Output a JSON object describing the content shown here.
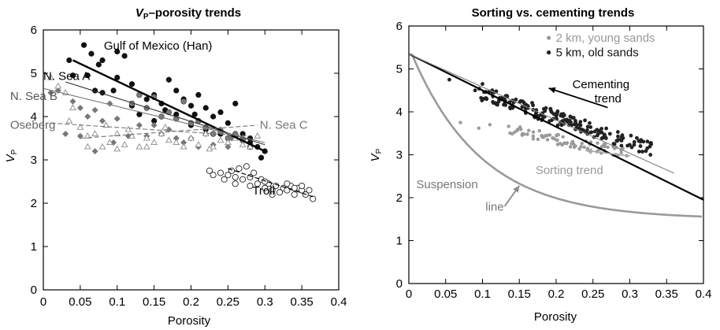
{
  "chart_data": [
    {
      "type": "scatter",
      "title_main": "V",
      "title_sub": "P",
      "title_rest": "–porosity trends",
      "xlabel": "Porosity",
      "ylabel_main": "V",
      "ylabel_sub": "P",
      "xlim": [
        0,
        0.4
      ],
      "ylim": [
        0,
        6
      ],
      "xticks": [
        "0",
        "0.05",
        "0.1",
        "0.15",
        "0.2",
        "0.25",
        "0.3",
        "0.35",
        "0.4"
      ],
      "yticks": [
        "0",
        "1",
        "2",
        "3",
        "4",
        "5",
        "6"
      ],
      "annotations": [
        {
          "text": "Gulf of Mexico (Han)",
          "x": 0.082,
          "y": 5.55,
          "color": "#000000"
        },
        {
          "text": "N. Sea   A",
          "x": 0.0,
          "y": 4.85,
          "color": "#000000"
        },
        {
          "text": "N. Sea   B",
          "x": -0.045,
          "y": 4.38,
          "color": "#555555"
        },
        {
          "text": "Oseberg",
          "x": -0.045,
          "y": 3.72,
          "color": "#666666"
        },
        {
          "text": "N. Sea   C",
          "x": 0.293,
          "y": 3.72,
          "color": "#777777"
        },
        {
          "text": "Troll",
          "x": 0.283,
          "y": 2.2,
          "color": "#000000"
        }
      ],
      "series": [
        {
          "name": "Gulf of Mexico (Han)",
          "marker": "filled-circle",
          "color": "#111111",
          "points": [
            [
              0.055,
              5.65
            ],
            [
              0.065,
              5.45
            ],
            [
              0.08,
              5.3
            ],
            [
              0.1,
              5.5
            ],
            [
              0.11,
              5.4
            ],
            [
              0.035,
              5.3
            ],
            [
              0.075,
              5.2
            ],
            [
              0.06,
              4.95
            ],
            [
              0.07,
              4.6
            ],
            [
              0.08,
              4.55
            ],
            [
              0.1,
              4.9
            ],
            [
              0.12,
              4.75
            ],
            [
              0.14,
              4.4
            ],
            [
              0.15,
              4.5
            ],
            [
              0.16,
              4.3
            ],
            [
              0.17,
              4.85
            ],
            [
              0.18,
              4.6
            ],
            [
              0.19,
              4.4
            ],
            [
              0.2,
              4.25
            ],
            [
              0.21,
              4.5
            ],
            [
              0.22,
              4.2
            ],
            [
              0.23,
              4.0
            ],
            [
              0.24,
              4.1
            ],
            [
              0.25,
              3.85
            ],
            [
              0.26,
              4.3
            ],
            [
              0.27,
              3.6
            ],
            [
              0.28,
              3.5
            ],
            [
              0.29,
              3.3
            ],
            [
              0.295,
              3.05
            ],
            [
              0.3,
              3.2
            ],
            [
              0.12,
              4.25
            ],
            [
              0.13,
              4.05
            ],
            [
              0.15,
              3.9
            ],
            [
              0.18,
              4.05
            ],
            [
              0.2,
              3.8
            ],
            [
              0.22,
              3.7
            ],
            [
              0.24,
              3.6
            ],
            [
              0.26,
              3.55
            ],
            [
              0.28,
              3.4
            ],
            [
              0.205,
              4.05
            ],
            [
              0.165,
              4.15
            ],
            [
              0.04,
              4.95
            ],
            [
              0.095,
              4.6
            ]
          ]
        },
        {
          "name": "N. Sea A",
          "marker": "gray-circle",
          "color": "#7a7a7a",
          "points": [
            [
              0.12,
              4.3
            ],
            [
              0.14,
              4.2
            ],
            [
              0.16,
              4.0
            ],
            [
              0.17,
              4.1
            ],
            [
              0.18,
              3.95
            ],
            [
              0.2,
              3.85
            ],
            [
              0.21,
              3.9
            ],
            [
              0.22,
              3.75
            ],
            [
              0.23,
              3.6
            ],
            [
              0.24,
              3.65
            ],
            [
              0.25,
              3.5
            ],
            [
              0.26,
              3.6
            ],
            [
              0.27,
              3.45
            ],
            [
              0.28,
              3.3
            ],
            [
              0.19,
              4.35
            ],
            [
              0.15,
              4.45
            ],
            [
              0.13,
              4.5
            ]
          ]
        },
        {
          "name": "N. Sea B",
          "marker": "gray-diamond",
          "color": "#777777",
          "points": [
            [
              0.01,
              4.55
            ],
            [
              0.02,
              4.6
            ],
            [
              0.04,
              4.35
            ],
            [
              0.05,
              4.2
            ],
            [
              0.06,
              4.0
            ],
            [
              0.07,
              4.15
            ],
            [
              0.08,
              3.9
            ],
            [
              0.09,
              4.3
            ],
            [
              0.1,
              3.95
            ],
            [
              0.13,
              3.8
            ],
            [
              0.14,
              3.55
            ],
            [
              0.15,
              3.8
            ],
            [
              0.16,
              3.6
            ],
            [
              0.17,
              3.7
            ],
            [
              0.18,
              3.5
            ],
            [
              0.19,
              3.4
            ],
            [
              0.2,
              3.5
            ],
            [
              0.21,
              3.3
            ],
            [
              0.22,
              3.6
            ],
            [
              0.23,
              3.35
            ],
            [
              0.24,
              3.7
            ],
            [
              0.255,
              3.5
            ],
            [
              0.27,
              3.5
            ],
            [
              0.095,
              3.4
            ],
            [
              0.07,
              3.2
            ],
            [
              0.05,
              3.55
            ],
            [
              0.03,
              3.6
            ],
            [
              0.115,
              3.55
            ],
            [
              0.25,
              3.3
            ]
          ]
        },
        {
          "name": "Oseberg",
          "marker": "open-triangle",
          "color": "#8a8a8a",
          "points": [
            [
              0.01,
              4.9
            ],
            [
              0.02,
              4.7
            ],
            [
              0.03,
              4.55
            ],
            [
              0.04,
              4.2
            ],
            [
              0.05,
              3.75
            ],
            [
              0.06,
              3.55
            ],
            [
              0.07,
              3.6
            ],
            [
              0.08,
              3.3
            ],
            [
              0.09,
              3.4
            ],
            [
              0.1,
              3.6
            ],
            [
              0.11,
              3.35
            ],
            [
              0.12,
              3.55
            ],
            [
              0.13,
              3.3
            ],
            [
              0.14,
              3.5
            ],
            [
              0.15,
              3.4
            ],
            [
              0.16,
              3.6
            ],
            [
              0.17,
              3.45
            ],
            [
              0.18,
              3.4
            ],
            [
              0.19,
              3.3
            ],
            [
              0.2,
              3.5
            ],
            [
              0.21,
              3.35
            ],
            [
              0.22,
              3.6
            ],
            [
              0.23,
              3.3
            ],
            [
              0.24,
              3.45
            ],
            [
              0.25,
              3.4
            ],
            [
              0.26,
              3.5
            ],
            [
              0.27,
              3.35
            ],
            [
              0.28,
              3.3
            ],
            [
              0.29,
              3.55
            ],
            [
              0.06,
              3.3
            ],
            [
              0.1,
              3.25
            ],
            [
              0.14,
              3.3
            ],
            [
              0.035,
              3.9
            ],
            [
              0.165,
              3.75
            ],
            [
              0.085,
              3.8
            ],
            [
              0.115,
              3.7
            ],
            [
              0.225,
              3.25
            ]
          ]
        },
        {
          "name": "Troll",
          "marker": "open-circle",
          "color": "#222222",
          "points": [
            [
              0.225,
              2.75
            ],
            [
              0.23,
              2.65
            ],
            [
              0.24,
              2.7
            ],
            [
              0.245,
              2.55
            ],
            [
              0.25,
              2.65
            ],
            [
              0.255,
              2.75
            ],
            [
              0.26,
              2.6
            ],
            [
              0.265,
              2.8
            ],
            [
              0.27,
              2.55
            ],
            [
              0.275,
              2.85
            ],
            [
              0.28,
              2.6
            ],
            [
              0.285,
              2.7
            ],
            [
              0.29,
              2.45
            ],
            [
              0.295,
              2.55
            ],
            [
              0.3,
              2.35
            ],
            [
              0.305,
              2.45
            ],
            [
              0.31,
              2.3
            ],
            [
              0.315,
              2.4
            ],
            [
              0.32,
              2.25
            ],
            [
              0.325,
              2.35
            ],
            [
              0.33,
              2.3
            ],
            [
              0.335,
              2.4
            ],
            [
              0.34,
              2.2
            ],
            [
              0.345,
              2.35
            ],
            [
              0.35,
              2.3
            ],
            [
              0.355,
              2.2
            ],
            [
              0.36,
              2.3
            ],
            [
              0.365,
              2.1
            ],
            [
              0.26,
              2.45
            ],
            [
              0.28,
              2.4
            ],
            [
              0.3,
              2.5
            ],
            [
              0.31,
              2.2
            ],
            [
              0.33,
              2.45
            ],
            [
              0.34,
              2.35
            ],
            [
              0.35,
              2.4
            ]
          ]
        }
      ],
      "trend_lines": [
        {
          "name": "Gulf of Mexico (Han)",
          "from": [
            0.04,
            5.3
          ],
          "to": [
            0.3,
            3.2
          ],
          "style": "solid",
          "color": "#000000",
          "width": 2.4
        },
        {
          "name": "N. Sea A",
          "from": [
            0.03,
            4.8
          ],
          "to": [
            0.3,
            3.35
          ],
          "style": "solid",
          "color": "#333333",
          "width": 1.1
        },
        {
          "name": "N. Sea B",
          "from": [
            0.0,
            4.65
          ],
          "to": [
            0.3,
            3.4
          ],
          "style": "solid",
          "color": "#777777",
          "width": 1.1
        },
        {
          "name": "Oseberg",
          "from": [
            0.01,
            3.85
          ],
          "to": [
            0.28,
            3.55
          ],
          "style": "dash",
          "color": "#777777",
          "width": 1.1
        },
        {
          "name": "N. Sea C",
          "from": [
            0.05,
            3.5
          ],
          "to": [
            0.29,
            3.8
          ],
          "style": "dash",
          "color": "#777777",
          "width": 1.1
        },
        {
          "name": "Troll",
          "from": [
            0.25,
            2.8
          ],
          "to": [
            0.365,
            2.15
          ],
          "style": "dash",
          "color": "#000000",
          "width": 1.2
        }
      ]
    },
    {
      "type": "scatter",
      "title": "Sorting vs. cementing trends",
      "xlabel": "Porosity",
      "ylabel_main": "V",
      "ylabel_sub": "P",
      "xlim": [
        0,
        0.4
      ],
      "ylim": [
        0,
        6
      ],
      "xticks": [
        "0",
        "0.05",
        "0.1",
        "0.15",
        "0.2",
        "0.25",
        "0.3",
        "0.35",
        "0.4"
      ],
      "yticks": [
        "0",
        "1",
        "2",
        "3",
        "4",
        "5",
        "6"
      ],
      "legend": {
        "position": "top-right",
        "entries": [
          {
            "label": "2 km, young sands",
            "color": "#9a9a9a"
          },
          {
            "label": "5 km, old sands",
            "color": "#222222"
          }
        ]
      },
      "annotations": [
        {
          "text": "Cementing",
          "x": 0.222,
          "y": 4.55,
          "color": "#000000"
        },
        {
          "text": "trend",
          "x": 0.252,
          "y": 4.22,
          "color": "#000000"
        },
        {
          "text": "Sorting trend",
          "x": 0.172,
          "y": 2.55,
          "color": "#999999"
        },
        {
          "text": "Suspension",
          "x": 0.01,
          "y": 2.22,
          "color": "#777777"
        },
        {
          "text": "line",
          "x": 0.104,
          "y": 1.7,
          "color": "#777777"
        }
      ],
      "series": [
        {
          "name": "2 km, young sands",
          "marker": "gray-dot",
          "color": "#9a9a9a",
          "generator": {
            "x_from": 0.135,
            "x_to": 0.3,
            "count": 80,
            "y_start": 3.6,
            "slope": -3.6,
            "jitter": 0.12
          },
          "extra_points": [
            [
              0.07,
              3.75
            ],
            [
              0.11,
              3.7
            ],
            [
              0.095,
              3.62
            ]
          ]
        },
        {
          "name": "5 km, old sands",
          "marker": "dark-dot",
          "color": "#222222",
          "generator": {
            "x_from": 0.095,
            "x_to": 0.33,
            "count": 190,
            "y_start": 4.45,
            "slope": -5.6,
            "jitter": 0.17
          },
          "extra_points": [
            [
              0.055,
              4.75
            ],
            [
              0.1,
              4.65
            ],
            [
              0.09,
              4.5
            ]
          ]
        }
      ],
      "trend_lines": [
        {
          "name": "Cementing line",
          "from": [
            0.0,
            5.35
          ],
          "to": [
            0.4,
            1.95
          ],
          "style": "solid",
          "color": "#000000",
          "width": 2.2
        },
        {
          "name": "Sorting line",
          "from": [
            0.0,
            5.35
          ],
          "to": [
            0.36,
            2.57
          ],
          "style": "solid",
          "color": "#8a8a8a",
          "width": 1.2
        }
      ],
      "suspension_curve": {
        "phi0": 0.004,
        "v0": 5.35,
        "vmin": 1.5,
        "k": 0.095,
        "color": "#9a9a9a"
      },
      "arrows": [
        {
          "name": "Cementing trend arrow",
          "from": [
            0.27,
            4.1
          ],
          "to": [
            0.19,
            4.55
          ],
          "color": "#000000"
        },
        {
          "name": "Sorting trend arrow",
          "from": [
            0.3,
            2.97
          ],
          "to": [
            0.24,
            3.1
          ],
          "color": "#aaaaaa"
        },
        {
          "name": "Suspension line arrow",
          "from": [
            0.13,
            1.8
          ],
          "to": [
            0.15,
            2.28
          ],
          "color": "#888888"
        }
      ]
    }
  ]
}
